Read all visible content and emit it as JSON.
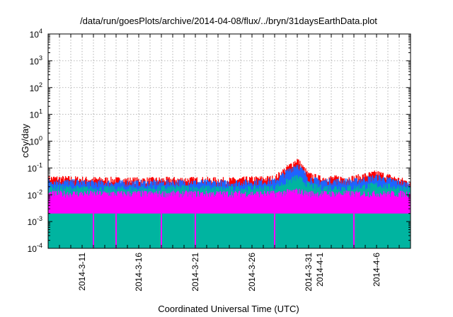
{
  "chart_data": {
    "type": "area",
    "title": "/data/run/goesPlots/archive/2014-04-08/flux/../bryn/31daysEarthData.plot",
    "xlabel": "Coordinated Universal Time (UTC)",
    "ylabel": "cGy/day",
    "y_scale": "log",
    "ylim": [
      0.0001,
      10000
    ],
    "xlim": [
      "2014-03-08",
      "2014-04-09"
    ],
    "y_ticks": [
      {
        "base": "10",
        "exp": "-4",
        "value": 0.0001
      },
      {
        "base": "10",
        "exp": "-3",
        "value": 0.001
      },
      {
        "base": "10",
        "exp": "-2",
        "value": 0.01
      },
      {
        "base": "10",
        "exp": "-1",
        "value": 0.1
      },
      {
        "base": "10",
        "exp": "0",
        "value": 1
      },
      {
        "base": "10",
        "exp": "1",
        "value": 10
      },
      {
        "base": "10",
        "exp": "2",
        "value": 100
      },
      {
        "base": "10",
        "exp": "3",
        "value": 1000
      },
      {
        "base": "10",
        "exp": "4",
        "value": 10000
      }
    ],
    "x_ticks": [
      {
        "label": "2014-3-11",
        "date": "2014-03-11"
      },
      {
        "label": "2014-3-16",
        "date": "2014-03-16"
      },
      {
        "label": "2014-3-21",
        "date": "2014-03-21"
      },
      {
        "label": "2014-3-26",
        "date": "2014-03-26"
      },
      {
        "label": "2014-3-31",
        "date": "2014-03-31"
      },
      {
        "label": "2014-4-1",
        "date": "2014-04-01"
      },
      {
        "label": "2014-4-6",
        "date": "2014-04-06"
      }
    ],
    "grid": true,
    "series": [
      {
        "color": "#ff0000",
        "x": [
          "2014-03-08",
          "2014-03-12",
          "2014-03-16",
          "2014-03-20",
          "2014-03-24",
          "2014-03-28",
          "2014-03-30",
          "2014-03-31",
          "2014-04-01",
          "2014-04-04",
          "2014-04-06",
          "2014-04-09"
        ],
        "y": [
          0.045,
          0.04,
          0.038,
          0.04,
          0.038,
          0.045,
          0.22,
          0.06,
          0.045,
          0.045,
          0.07,
          0.03
        ]
      },
      {
        "color": "#1e64ff",
        "x": [
          "2014-03-08",
          "2014-03-12",
          "2014-03-16",
          "2014-03-20",
          "2014-03-24",
          "2014-03-28",
          "2014-03-30",
          "2014-03-31",
          "2014-04-01",
          "2014-04-04",
          "2014-04-06",
          "2014-04-09"
        ],
        "y": [
          0.035,
          0.03,
          0.03,
          0.032,
          0.03,
          0.035,
          0.15,
          0.045,
          0.035,
          0.035,
          0.05,
          0.025
        ]
      },
      {
        "color": "#00b4a0",
        "x": [
          "2014-03-08",
          "2014-03-12",
          "2014-03-16",
          "2014-03-20",
          "2014-03-24",
          "2014-03-28",
          "2014-03-30",
          "2014-03-31",
          "2014-04-01",
          "2014-04-04",
          "2014-04-06",
          "2014-04-09"
        ],
        "y": [
          0.02,
          0.018,
          0.018,
          0.02,
          0.018,
          0.02,
          0.05,
          0.025,
          0.02,
          0.02,
          0.025,
          0.018
        ]
      },
      {
        "color": "#ff00ff",
        "x": [
          "2014-03-08",
          "2014-03-12",
          "2014-03-16",
          "2014-03-20",
          "2014-03-24",
          "2014-03-28",
          "2014-03-30",
          "2014-03-31",
          "2014-04-01",
          "2014-04-04",
          "2014-04-06",
          "2014-04-09"
        ],
        "y": [
          0.012,
          0.012,
          0.012,
          0.012,
          0.012,
          0.012,
          0.015,
          0.012,
          0.012,
          0.012,
          0.012,
          0.012
        ],
        "y_low": 0.002,
        "dips": [
          "2014-03-12",
          "2014-03-14",
          "2014-03-18",
          "2014-03-21",
          "2014-03-28",
          "2014-04-04"
        ]
      }
    ]
  }
}
